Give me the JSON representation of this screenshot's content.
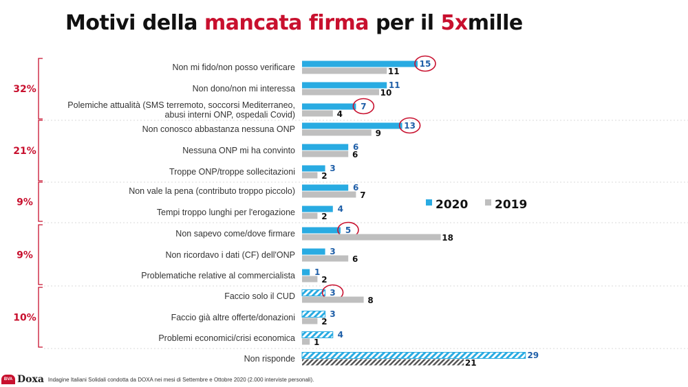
{
  "title": {
    "part1": "Motivi della ",
    "part2": "mancata firma",
    "part3": " per il ",
    "part4": "5x",
    "part5": "mille"
  },
  "colors": {
    "series_2020": "#29abe2",
    "series_2019": "#bfbfbf",
    "accent": "#c8102e",
    "value_2020_text": "#1f5fa8"
  },
  "legend": {
    "label_2020": "2020",
    "label_2019": "2019"
  },
  "groups": [
    {
      "label": "32%",
      "rows": [
        0,
        2
      ]
    },
    {
      "label": "21%",
      "rows": [
        3,
        5
      ]
    },
    {
      "label": "9%",
      "rows": [
        6,
        7
      ]
    },
    {
      "label": "9%",
      "rows": [
        8,
        10
      ]
    },
    {
      "label": "10%",
      "rows": [
        11,
        13
      ]
    }
  ],
  "chart_data": {
    "type": "bar",
    "orientation": "horizontal",
    "title": "Motivi della mancata firma per il 5xmille",
    "categories": [
      [
        "Non mi fido/non posso verificare"
      ],
      [
        "Non dono/non mi interessa"
      ],
      [
        "Polemiche attualità (SMS terremoto, soccorsi Mediterraneo,",
        "abusi interni ONP, ospedali Covid)"
      ],
      [
        "Non conosco abbastanza nessuna ONP"
      ],
      [
        "Nessuna ONP mi ha convinto"
      ],
      [
        "Troppe ONP/troppe sollecitazioni"
      ],
      [
        "Non vale la pena (contributo troppo piccolo)"
      ],
      [
        "Tempi troppo lunghi per l'erogazione"
      ],
      [
        "Non sapevo come/dove firmare"
      ],
      [
        "Non ricordavo i dati (CF) dell'ONP"
      ],
      [
        "Problematiche relative al commercialista"
      ],
      [
        "Faccio solo il CUD"
      ],
      [
        "Faccio già altre offerte/donazioni"
      ],
      [
        "Problemi economici/crisi economica"
      ],
      [
        "Non risponde"
      ]
    ],
    "series": [
      {
        "name": "2020",
        "values": [
          15,
          11,
          7,
          13,
          6,
          3,
          6,
          4,
          5,
          3,
          1,
          3,
          3,
          4,
          29
        ]
      },
      {
        "name": "2019",
        "values": [
          11,
          10,
          4,
          9,
          6,
          2,
          7,
          2,
          18,
          6,
          2,
          8,
          2,
          1,
          21
        ]
      }
    ],
    "hatched_2020": [
      11,
      12,
      13,
      14
    ],
    "hatched_2019": [
      14
    ],
    "circled_2020": [
      0,
      2,
      3,
      8,
      11
    ],
    "xlim": [
      0,
      30
    ]
  },
  "footer": {
    "logo_badge": "BVA",
    "logo_text": "Doxa",
    "note": "Indagine Italiani Solidali condotta da DOXA nei mesi di Settembre e Ottobre 2020 (2.000 interviste personali)."
  }
}
